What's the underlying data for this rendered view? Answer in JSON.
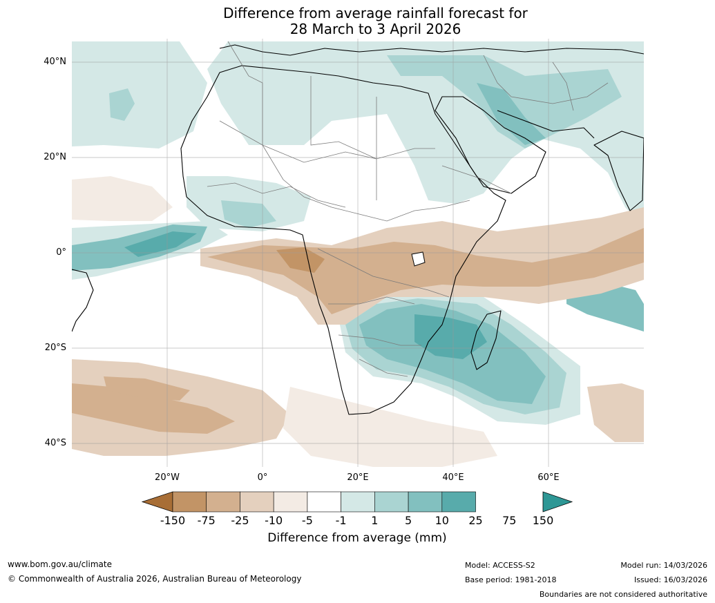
{
  "title": {
    "line1": "Difference from average rainfall forecast for",
    "line2": "28 March to 3 April 2026"
  },
  "map": {
    "lat_labels": [
      "40°N",
      "20°N",
      "0°",
      "20°S",
      "40°S"
    ],
    "lon_labels": [
      "20°W",
      "0°",
      "20°E",
      "40°E",
      "60°E"
    ]
  },
  "legend": {
    "title": "Difference from average (mm)",
    "ticks": [
      "-150",
      "-75",
      "-25",
      "-10",
      "-5",
      "-1",
      "1",
      "5",
      "10",
      "25",
      "75",
      "150"
    ],
    "colors": [
      "#a86e36",
      "#c29466",
      "#d3b08f",
      "#e4d0be",
      "#f3ebe4",
      "#ffffff",
      "#d4e8e6",
      "#aad4d2",
      "#82c0bf",
      "#58abab",
      "#2e9795"
    ]
  },
  "footer": {
    "website": "www.bom.gov.au/climate",
    "copyright": "© Commonwealth of Australia 2026, Australian Bureau of Meteorology",
    "model": "Model: ACCESS-S2",
    "base_period": "Base period: 1981-2018",
    "model_run": "Model run: 14/03/2026",
    "issued": "Issued: 16/03/2026",
    "disclaimer": "Boundaries are not considered authoritative"
  }
}
